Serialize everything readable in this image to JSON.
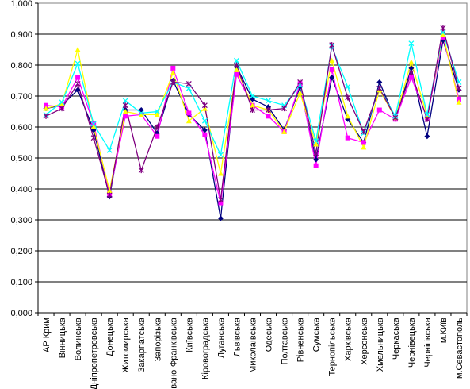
{
  "chart_data": {
    "type": "line",
    "title": "",
    "xlabel": "",
    "ylabel": "",
    "ylim": [
      0,
      1
    ],
    "y_ticks": [
      "0,000",
      "0,100",
      "0,200",
      "0,300",
      "0,400",
      "0,500",
      "0,600",
      "0,700",
      "0,800",
      "0,900",
      "1,000"
    ],
    "grid": "horizontal",
    "legend": "none",
    "categories": [
      "АР Крим",
      "Вінницька",
      "Волинська",
      "Дніпропетровська",
      "Донецька",
      "Житомирська",
      "Закарпатська",
      "Запорізька",
      "Івано-Франківська",
      "Київська",
      "Кіровоградська",
      "Луганська",
      "Львівська",
      "Миколаївська",
      "Одеська",
      "Полтавська",
      "Рівненська",
      "Сумська",
      "Тернопільська",
      "Харківська",
      "Херсонська",
      "Хмельницька",
      "Черкаська",
      "Чернівецька",
      "Чернігівська",
      "м.Київ",
      "м.Севастополь"
    ],
    "series": [
      {
        "color": "#000080",
        "marker": "diamond",
        "values": [
          0.66,
          0.67,
          0.72,
          0.59,
          0.375,
          0.655,
          0.655,
          0.58,
          0.75,
          0.64,
          0.59,
          0.305,
          0.795,
          0.69,
          0.665,
          0.59,
          0.73,
          0.495,
          0.76,
          0.625,
          0.55,
          0.745,
          0.625,
          0.79,
          0.57,
          0.88,
          0.72
        ]
      },
      {
        "color": "#ff00ff",
        "marker": "square",
        "values": [
          0.67,
          0.665,
          0.76,
          0.61,
          0.385,
          0.635,
          0.64,
          0.57,
          0.79,
          0.645,
          0.575,
          0.355,
          0.77,
          0.67,
          0.635,
          0.585,
          0.74,
          0.475,
          0.785,
          0.565,
          0.55,
          0.655,
          0.625,
          0.76,
          0.63,
          0.89,
          0.69
        ]
      },
      {
        "color": "#ffff00",
        "marker": "triangle",
        "values": [
          0.66,
          0.675,
          0.85,
          0.6,
          0.395,
          0.65,
          0.64,
          0.64,
          0.775,
          0.62,
          0.66,
          0.45,
          0.785,
          0.67,
          0.655,
          0.585,
          0.71,
          0.545,
          0.815,
          0.635,
          0.535,
          0.72,
          0.63,
          0.81,
          0.635,
          0.9,
          0.68
        ]
      },
      {
        "color": "#00ffff",
        "marker": "x",
        "values": [
          0.64,
          0.68,
          0.805,
          0.61,
          0.525,
          0.685,
          0.645,
          0.65,
          0.745,
          0.725,
          0.62,
          0.51,
          0.815,
          0.7,
          0.685,
          0.67,
          0.735,
          0.555,
          0.86,
          0.73,
          0.58,
          0.725,
          0.635,
          0.87,
          0.64,
          0.905,
          0.745
        ]
      },
      {
        "color": "#800080",
        "marker": "star",
        "values": [
          0.635,
          0.66,
          0.74,
          0.565,
          0.38,
          0.67,
          0.46,
          0.6,
          0.745,
          0.74,
          0.67,
          0.365,
          0.8,
          0.655,
          0.655,
          0.66,
          0.745,
          0.515,
          0.865,
          0.695,
          0.585,
          0.725,
          0.63,
          0.775,
          0.625,
          0.92,
          0.725
        ]
      }
    ]
  }
}
